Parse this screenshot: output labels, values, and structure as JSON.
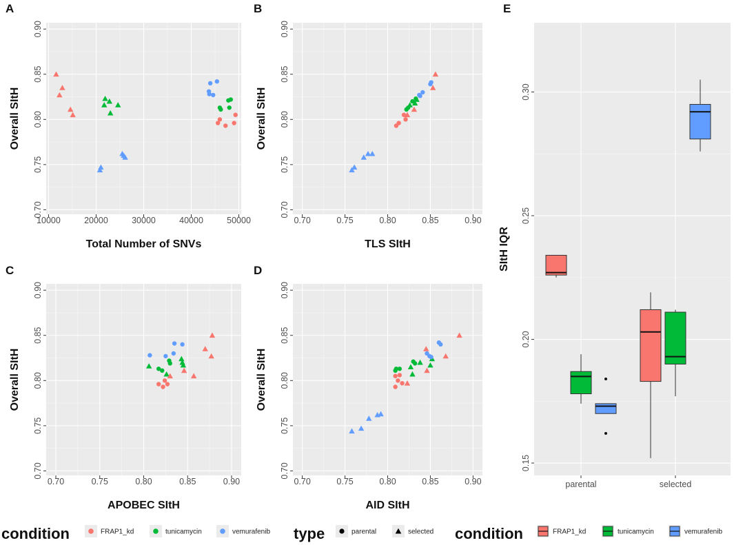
{
  "colors": {
    "FRAP1_kd": "#f8766d",
    "tunicamycin": "#00ba38",
    "vemurafenib": "#619cff",
    "panel_bg": "#ebebeb",
    "black": "#000000"
  },
  "chart_data": [
    {
      "panel": "A",
      "type": "scatter",
      "xlabel": "Total Number of SNVs",
      "ylabel": "Overall SItH",
      "xlim": [
        9500,
        50500
      ],
      "ylim": [
        0.695,
        0.907
      ],
      "xticks": [
        10000,
        20000,
        30000,
        40000,
        50000
      ],
      "xtick_labels": [
        "10000",
        "20000",
        "30000",
        "40000",
        "50000"
      ],
      "yticks": [
        0.7,
        0.75,
        0.8,
        0.85,
        0.9
      ],
      "ytick_labels": [
        "0.70",
        "0.75",
        "0.80",
        "0.85",
        "0.90"
      ],
      "points": [
        {
          "x": 11600,
          "y": 0.85,
          "condition": "FRAP1_kd",
          "type": "selected"
        },
        {
          "x": 12900,
          "y": 0.835,
          "condition": "FRAP1_kd",
          "type": "selected"
        },
        {
          "x": 12300,
          "y": 0.827,
          "condition": "FRAP1_kd",
          "type": "selected"
        },
        {
          "x": 14600,
          "y": 0.811,
          "condition": "FRAP1_kd",
          "type": "selected"
        },
        {
          "x": 15100,
          "y": 0.805,
          "condition": "FRAP1_kd",
          "type": "selected"
        },
        {
          "x": 21900,
          "y": 0.823,
          "condition": "tunicamycin",
          "type": "selected"
        },
        {
          "x": 22800,
          "y": 0.82,
          "condition": "tunicamycin",
          "type": "selected"
        },
        {
          "x": 21700,
          "y": 0.816,
          "condition": "tunicamycin",
          "type": "selected"
        },
        {
          "x": 24600,
          "y": 0.816,
          "condition": "tunicamycin",
          "type": "selected"
        },
        {
          "x": 23000,
          "y": 0.807,
          "condition": "tunicamycin",
          "type": "selected"
        },
        {
          "x": 21000,
          "y": 0.747,
          "condition": "vemurafenib",
          "type": "selected"
        },
        {
          "x": 20800,
          "y": 0.744,
          "condition": "vemurafenib",
          "type": "selected"
        },
        {
          "x": 25500,
          "y": 0.762,
          "condition": "vemurafenib",
          "type": "selected"
        },
        {
          "x": 25800,
          "y": 0.76,
          "condition": "vemurafenib",
          "type": "selected"
        },
        {
          "x": 26100,
          "y": 0.758,
          "condition": "vemurafenib",
          "type": "selected"
        },
        {
          "x": 44000,
          "y": 0.84,
          "condition": "vemurafenib",
          "type": "parental"
        },
        {
          "x": 45400,
          "y": 0.842,
          "condition": "vemurafenib",
          "type": "parental"
        },
        {
          "x": 43700,
          "y": 0.831,
          "condition": "vemurafenib",
          "type": "parental"
        },
        {
          "x": 43800,
          "y": 0.828,
          "condition": "vemurafenib",
          "type": "parental"
        },
        {
          "x": 44600,
          "y": 0.827,
          "condition": "vemurafenib",
          "type": "parental"
        },
        {
          "x": 47800,
          "y": 0.821,
          "condition": "tunicamycin",
          "type": "parental"
        },
        {
          "x": 48300,
          "y": 0.822,
          "condition": "tunicamycin",
          "type": "parental"
        },
        {
          "x": 46000,
          "y": 0.813,
          "condition": "tunicamycin",
          "type": "parental"
        },
        {
          "x": 46200,
          "y": 0.811,
          "condition": "tunicamycin",
          "type": "parental"
        },
        {
          "x": 48000,
          "y": 0.813,
          "condition": "tunicamycin",
          "type": "parental"
        },
        {
          "x": 46000,
          "y": 0.8,
          "condition": "FRAP1_kd",
          "type": "parental"
        },
        {
          "x": 45600,
          "y": 0.796,
          "condition": "FRAP1_kd",
          "type": "parental"
        },
        {
          "x": 47200,
          "y": 0.793,
          "condition": "FRAP1_kd",
          "type": "parental"
        },
        {
          "x": 49300,
          "y": 0.805,
          "condition": "FRAP1_kd",
          "type": "parental"
        },
        {
          "x": 49000,
          "y": 0.796,
          "condition": "FRAP1_kd",
          "type": "parental"
        }
      ]
    },
    {
      "panel": "B",
      "type": "scatter",
      "xlabel": "TLS SItH",
      "ylabel": "Overall SItH",
      "xlim": [
        0.689,
        0.911
      ],
      "ylim": [
        0.695,
        0.907
      ],
      "xticks": [
        0.7,
        0.75,
        0.8,
        0.85,
        0.9
      ],
      "xtick_labels": [
        "0.70",
        "0.75",
        "0.80",
        "0.85",
        "0.90"
      ],
      "yticks": [
        0.7,
        0.75,
        0.8,
        0.85,
        0.9
      ],
      "ytick_labels": [
        "0.70",
        "0.75",
        "0.80",
        "0.85",
        "0.90"
      ],
      "points": [
        {
          "x": 0.758,
          "y": 0.744,
          "condition": "vemurafenib",
          "type": "selected"
        },
        {
          "x": 0.761,
          "y": 0.747,
          "condition": "vemurafenib",
          "type": "selected"
        },
        {
          "x": 0.772,
          "y": 0.758,
          "condition": "vemurafenib",
          "type": "selected"
        },
        {
          "x": 0.777,
          "y": 0.762,
          "condition": "vemurafenib",
          "type": "selected"
        },
        {
          "x": 0.782,
          "y": 0.762,
          "condition": "vemurafenib",
          "type": "selected"
        },
        {
          "x": 0.81,
          "y": 0.793,
          "condition": "FRAP1_kd",
          "type": "parental"
        },
        {
          "x": 0.813,
          "y": 0.796,
          "condition": "FRAP1_kd",
          "type": "parental"
        },
        {
          "x": 0.821,
          "y": 0.8,
          "condition": "FRAP1_kd",
          "type": "parental"
        },
        {
          "x": 0.819,
          "y": 0.805,
          "condition": "FRAP1_kd",
          "type": "parental"
        },
        {
          "x": 0.823,
          "y": 0.805,
          "condition": "FRAP1_kd",
          "type": "selected"
        },
        {
          "x": 0.831,
          "y": 0.811,
          "condition": "FRAP1_kd",
          "type": "selected"
        },
        {
          "x": 0.822,
          "y": 0.811,
          "condition": "tunicamycin",
          "type": "parental"
        },
        {
          "x": 0.824,
          "y": 0.813,
          "condition": "tunicamycin",
          "type": "parental"
        },
        {
          "x": 0.826,
          "y": 0.816,
          "condition": "tunicamycin",
          "type": "selected"
        },
        {
          "x": 0.829,
          "y": 0.82,
          "condition": "tunicamycin",
          "type": "parental"
        },
        {
          "x": 0.832,
          "y": 0.818,
          "condition": "tunicamycin",
          "type": "selected"
        },
        {
          "x": 0.834,
          "y": 0.822,
          "condition": "tunicamycin",
          "type": "selected"
        },
        {
          "x": 0.833,
          "y": 0.823,
          "condition": "tunicamycin",
          "type": "parental"
        },
        {
          "x": 0.837,
          "y": 0.827,
          "condition": "vemurafenib",
          "type": "parental"
        },
        {
          "x": 0.838,
          "y": 0.826,
          "condition": "vemurafenib",
          "type": "parental"
        },
        {
          "x": 0.841,
          "y": 0.83,
          "condition": "vemurafenib",
          "type": "parental"
        },
        {
          "x": 0.85,
          "y": 0.839,
          "condition": "vemurafenib",
          "type": "parental"
        },
        {
          "x": 0.851,
          "y": 0.841,
          "condition": "vemurafenib",
          "type": "parental"
        },
        {
          "x": 0.853,
          "y": 0.835,
          "condition": "FRAP1_kd",
          "type": "selected"
        },
        {
          "x": 0.856,
          "y": 0.85,
          "condition": "FRAP1_kd",
          "type": "selected"
        }
      ]
    },
    {
      "panel": "C",
      "type": "scatter",
      "xlabel": "APOBEC SItH",
      "ylabel": "Overall SItH",
      "xlim": [
        0.689,
        0.911
      ],
      "ylim": [
        0.695,
        0.907
      ],
      "xticks": [
        0.7,
        0.75,
        0.8,
        0.85,
        0.9
      ],
      "xtick_labels": [
        "0.70",
        "0.75",
        "0.80",
        "0.85",
        "0.90"
      ],
      "yticks": [
        0.7,
        0.75,
        0.8,
        0.85,
        0.9
      ],
      "ytick_labels": [
        "0.70",
        "0.75",
        "0.80",
        "0.85",
        "0.90"
      ],
      "points": [
        {
          "x": 0.807,
          "y": 0.828,
          "condition": "vemurafenib",
          "type": "parental"
        },
        {
          "x": 0.825,
          "y": 0.827,
          "condition": "vemurafenib",
          "type": "parental"
        },
        {
          "x": 0.834,
          "y": 0.83,
          "condition": "vemurafenib",
          "type": "parental"
        },
        {
          "x": 0.835,
          "y": 0.841,
          "condition": "vemurafenib",
          "type": "parental"
        },
        {
          "x": 0.844,
          "y": 0.84,
          "condition": "vemurafenib",
          "type": "parental"
        },
        {
          "x": 0.806,
          "y": 0.816,
          "condition": "tunicamycin",
          "type": "selected"
        },
        {
          "x": 0.817,
          "y": 0.813,
          "condition": "tunicamycin",
          "type": "parental"
        },
        {
          "x": 0.821,
          "y": 0.811,
          "condition": "tunicamycin",
          "type": "parental"
        },
        {
          "x": 0.829,
          "y": 0.822,
          "condition": "tunicamycin",
          "type": "parental"
        },
        {
          "x": 0.83,
          "y": 0.819,
          "condition": "tunicamycin",
          "type": "parental"
        },
        {
          "x": 0.826,
          "y": 0.807,
          "condition": "tunicamycin",
          "type": "selected"
        },
        {
          "x": 0.843,
          "y": 0.824,
          "condition": "tunicamycin",
          "type": "selected"
        },
        {
          "x": 0.844,
          "y": 0.82,
          "condition": "tunicamycin",
          "type": "selected"
        },
        {
          "x": 0.845,
          "y": 0.817,
          "condition": "tunicamycin",
          "type": "selected"
        },
        {
          "x": 0.817,
          "y": 0.796,
          "condition": "FRAP1_kd",
          "type": "parental"
        },
        {
          "x": 0.822,
          "y": 0.793,
          "condition": "FRAP1_kd",
          "type": "parental"
        },
        {
          "x": 0.824,
          "y": 0.8,
          "condition": "FRAP1_kd",
          "type": "parental"
        },
        {
          "x": 0.827,
          "y": 0.796,
          "condition": "FRAP1_kd",
          "type": "parental"
        },
        {
          "x": 0.83,
          "y": 0.805,
          "condition": "FRAP1_kd",
          "type": "selected"
        },
        {
          "x": 0.846,
          "y": 0.811,
          "condition": "FRAP1_kd",
          "type": "selected"
        },
        {
          "x": 0.857,
          "y": 0.805,
          "condition": "FRAP1_kd",
          "type": "selected"
        },
        {
          "x": 0.87,
          "y": 0.835,
          "condition": "FRAP1_kd",
          "type": "selected"
        },
        {
          "x": 0.877,
          "y": 0.827,
          "condition": "FRAP1_kd",
          "type": "selected"
        },
        {
          "x": 0.878,
          "y": 0.85,
          "condition": "FRAP1_kd",
          "type": "selected"
        }
      ]
    },
    {
      "panel": "D",
      "type": "scatter",
      "xlabel": "AID SItH",
      "ylabel": "Overall SItH",
      "xlim": [
        0.689,
        0.911
      ],
      "ylim": [
        0.695,
        0.907
      ],
      "xticks": [
        0.7,
        0.75,
        0.8,
        0.85,
        0.9
      ],
      "xtick_labels": [
        "0.70",
        "0.75",
        "0.80",
        "0.85",
        "0.90"
      ],
      "yticks": [
        0.7,
        0.75,
        0.8,
        0.85,
        0.9
      ],
      "ytick_labels": [
        "0.70",
        "0.75",
        "0.80",
        "0.85",
        "0.90"
      ],
      "points": [
        {
          "x": 0.758,
          "y": 0.744,
          "condition": "vemurafenib",
          "type": "selected"
        },
        {
          "x": 0.769,
          "y": 0.747,
          "condition": "vemurafenib",
          "type": "selected"
        },
        {
          "x": 0.778,
          "y": 0.758,
          "condition": "vemurafenib",
          "type": "selected"
        },
        {
          "x": 0.788,
          "y": 0.762,
          "condition": "vemurafenib",
          "type": "selected"
        },
        {
          "x": 0.792,
          "y": 0.763,
          "condition": "vemurafenib",
          "type": "selected"
        },
        {
          "x": 0.809,
          "y": 0.793,
          "condition": "FRAP1_kd",
          "type": "parental"
        },
        {
          "x": 0.812,
          "y": 0.8,
          "condition": "FRAP1_kd",
          "type": "parental"
        },
        {
          "x": 0.809,
          "y": 0.805,
          "condition": "FRAP1_kd",
          "type": "parental"
        },
        {
          "x": 0.814,
          "y": 0.806,
          "condition": "FRAP1_kd",
          "type": "parental"
        },
        {
          "x": 0.817,
          "y": 0.797,
          "condition": "FRAP1_kd",
          "type": "parental"
        },
        {
          "x": 0.823,
          "y": 0.797,
          "condition": "FRAP1_kd",
          "type": "selected"
        },
        {
          "x": 0.809,
          "y": 0.811,
          "condition": "tunicamycin",
          "type": "parental"
        },
        {
          "x": 0.81,
          "y": 0.813,
          "condition": "tunicamycin",
          "type": "parental"
        },
        {
          "x": 0.814,
          "y": 0.813,
          "condition": "tunicamycin",
          "type": "parental"
        },
        {
          "x": 0.827,
          "y": 0.815,
          "condition": "tunicamycin",
          "type": "selected"
        },
        {
          "x": 0.83,
          "y": 0.821,
          "condition": "tunicamycin",
          "type": "parental"
        },
        {
          "x": 0.832,
          "y": 0.819,
          "condition": "tunicamycin",
          "type": "parental"
        },
        {
          "x": 0.829,
          "y": 0.807,
          "condition": "tunicamycin",
          "type": "selected"
        },
        {
          "x": 0.838,
          "y": 0.82,
          "condition": "tunicamycin",
          "type": "selected"
        },
        {
          "x": 0.85,
          "y": 0.817,
          "condition": "tunicamycin",
          "type": "selected"
        },
        {
          "x": 0.852,
          "y": 0.824,
          "condition": "tunicamycin",
          "type": "selected"
        },
        {
          "x": 0.846,
          "y": 0.811,
          "condition": "FRAP1_kd",
          "type": "selected"
        },
        {
          "x": 0.845,
          "y": 0.835,
          "condition": "FRAP1_kd",
          "type": "selected"
        },
        {
          "x": 0.868,
          "y": 0.827,
          "condition": "FRAP1_kd",
          "type": "selected"
        },
        {
          "x": 0.884,
          "y": 0.85,
          "condition": "FRAP1_kd",
          "type": "selected"
        },
        {
          "x": 0.846,
          "y": 0.83,
          "condition": "vemurafenib",
          "type": "parental"
        },
        {
          "x": 0.849,
          "y": 0.827,
          "condition": "vemurafenib",
          "type": "parental"
        },
        {
          "x": 0.851,
          "y": 0.826,
          "condition": "vemurafenib",
          "type": "parental"
        },
        {
          "x": 0.86,
          "y": 0.842,
          "condition": "vemurafenib",
          "type": "parental"
        },
        {
          "x": 0.862,
          "y": 0.84,
          "condition": "vemurafenib",
          "type": "parental"
        }
      ]
    },
    {
      "panel": "E",
      "type": "boxplot",
      "xlabel": "",
      "ylabel": "SItH IQR",
      "categories": [
        "parental",
        "selected"
      ],
      "ylim": [
        0.145,
        0.328
      ],
      "yticks": [
        0.15,
        0.2,
        0.25,
        0.3
      ],
      "ytick_labels": [
        "0.15",
        "0.20",
        "0.25",
        "0.30"
      ],
      "boxes": [
        {
          "category": "parental",
          "condition": "FRAP1_kd",
          "lower_whisker": 0.225,
          "q1": 0.226,
          "median": 0.227,
          "q3": 0.234,
          "upper_whisker": 0.234,
          "outliers": []
        },
        {
          "category": "parental",
          "condition": "tunicamycin",
          "lower_whisker": 0.174,
          "q1": 0.178,
          "median": 0.185,
          "q3": 0.187,
          "upper_whisker": 0.194,
          "outliers": []
        },
        {
          "category": "parental",
          "condition": "vemurafenib",
          "lower_whisker": 0.17,
          "q1": 0.17,
          "median": 0.173,
          "q3": 0.174,
          "upper_whisker": 0.174,
          "outliers": [
            0.184,
            0.162
          ]
        },
        {
          "category": "selected",
          "condition": "FRAP1_kd",
          "lower_whisker": 0.152,
          "q1": 0.183,
          "median": 0.203,
          "q3": 0.212,
          "upper_whisker": 0.219,
          "outliers": []
        },
        {
          "category": "selected",
          "condition": "tunicamycin",
          "lower_whisker": 0.177,
          "q1": 0.19,
          "median": 0.193,
          "q3": 0.211,
          "upper_whisker": 0.212,
          "outliers": []
        },
        {
          "category": "selected",
          "condition": "vemurafenib",
          "lower_whisker": 0.276,
          "q1": 0.281,
          "median": 0.292,
          "q3": 0.295,
          "upper_whisker": 0.305,
          "outliers": []
        }
      ]
    }
  ],
  "legends": {
    "condition_title": "condition",
    "condition_items": [
      {
        "key": "FRAP1_kd",
        "label": "FRAP1_kd"
      },
      {
        "key": "tunicamycin",
        "label": "tunicamycin"
      },
      {
        "key": "vemurafenib",
        "label": "vemurafenib"
      }
    ],
    "type_title": "type",
    "type_items": [
      {
        "key": "parental",
        "label": "parental"
      },
      {
        "key": "selected",
        "label": "selected"
      }
    ],
    "box_condition_title": "condition",
    "box_condition_items": [
      {
        "key": "FRAP1_kd",
        "label": "FRAP1_kd"
      },
      {
        "key": "tunicamycin",
        "label": "tunicamycin"
      },
      {
        "key": "vemurafenib",
        "label": "vemurafenib"
      }
    ]
  }
}
